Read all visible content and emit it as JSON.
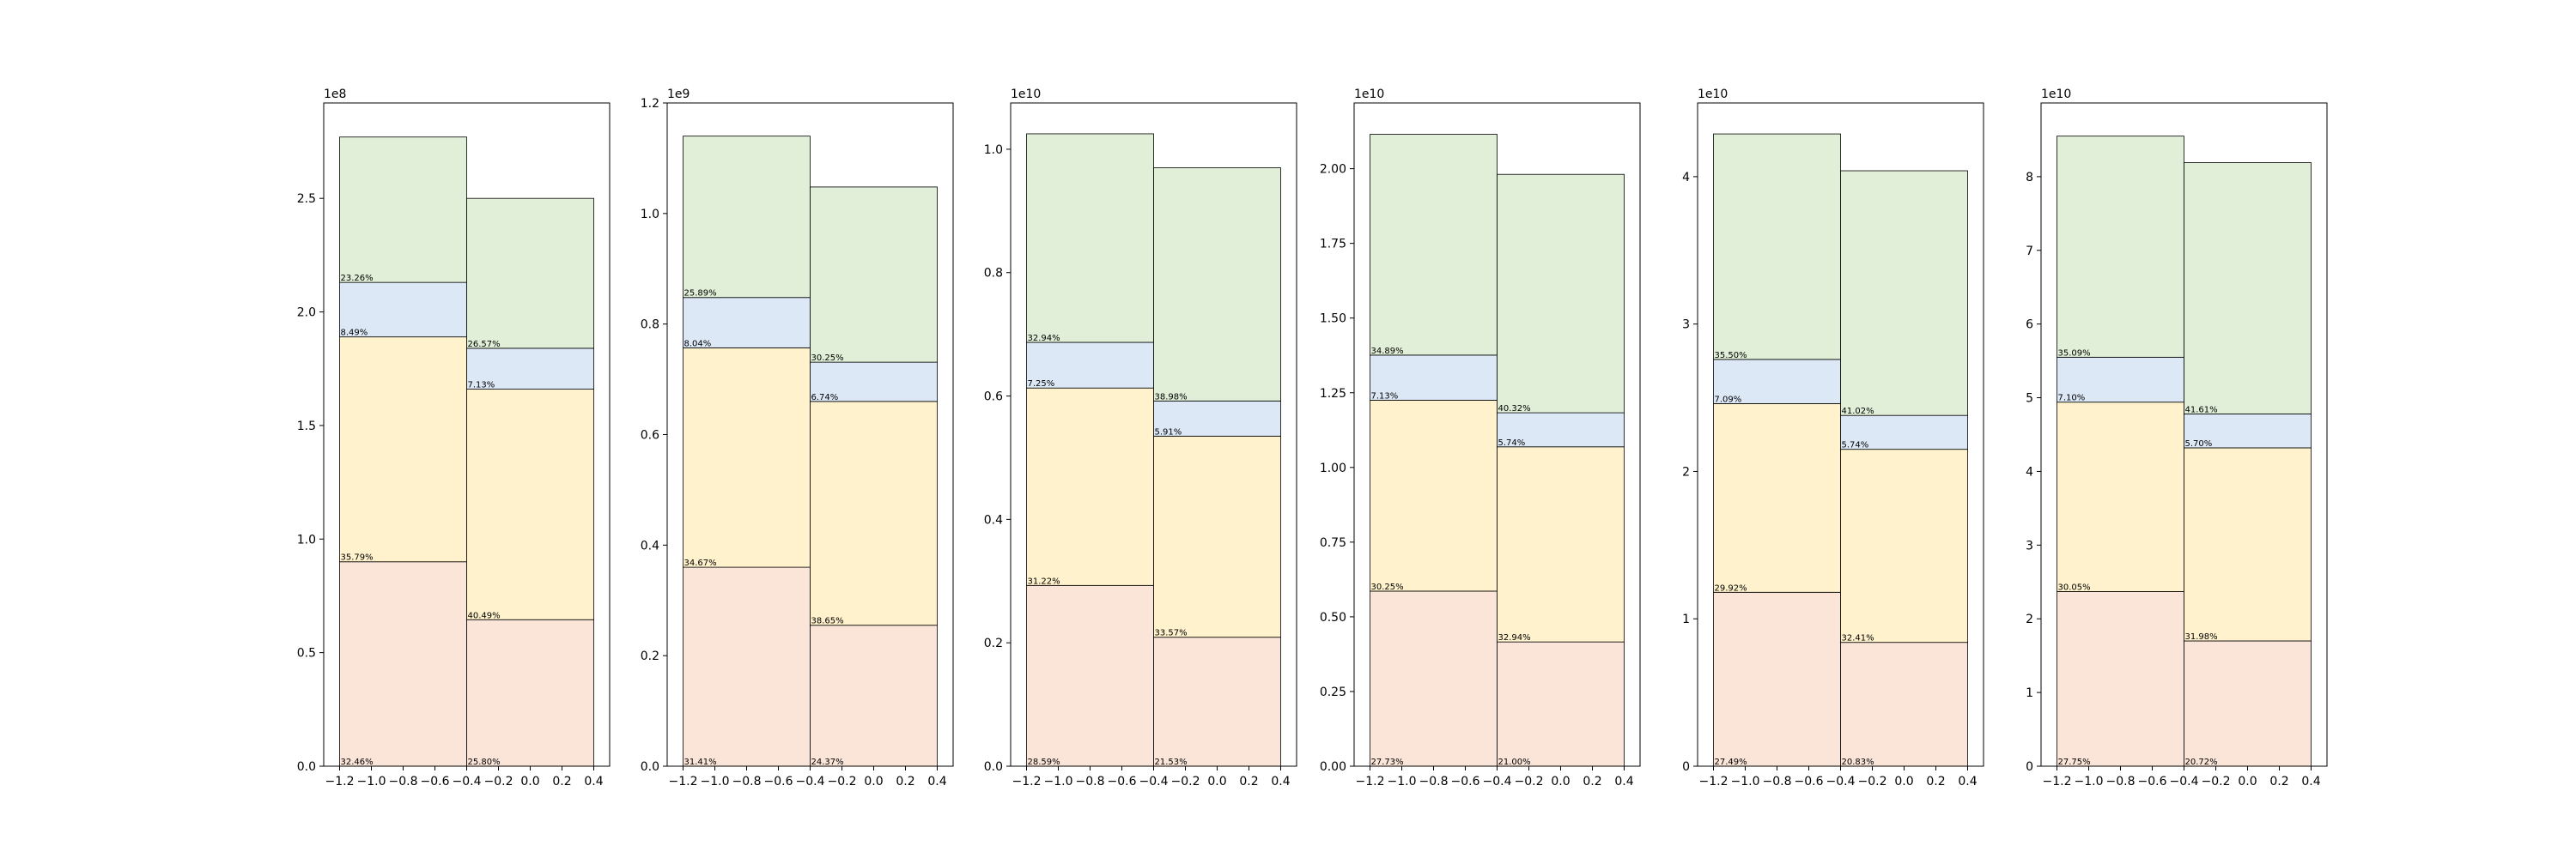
{
  "colors": {
    "segments": [
      "#fae5d8",
      "#fff2cc",
      "#dde8f7",
      "#e1efd8"
    ],
    "frame": "#000000",
    "bar_edge": "#000000"
  },
  "chart_data": [
    {
      "type": "bar",
      "stacked": true,
      "exponent_label": "1e8",
      "scale": 100000000,
      "xlim": [
        -1.3,
        0.5
      ],
      "ylim": [
        0,
        2.92
      ],
      "xticks": [
        -1.2,
        -1.0,
        -0.8,
        -0.6,
        -0.4,
        -0.2,
        0.0,
        0.2,
        0.4
      ],
      "xtick_labels": [
        "−1.2",
        "−1.0",
        "−0.8",
        "−0.6",
        "−0.4",
        "−0.2",
        "0.0",
        "0.2",
        "0.4"
      ],
      "yticks": [
        0,
        0.5,
        1.0,
        1.5,
        2.0,
        2.5
      ],
      "ytick_labels": [
        "0.0",
        "0.5",
        "1.0",
        "1.5",
        "2.0",
        "2.5"
      ],
      "bars": [
        {
          "left": -1.2,
          "width": 0.8,
          "segments": [
            0.9,
            1.89,
            2.13,
            2.77
          ],
          "labels": [
            "32.46%",
            "35.79%",
            "8.49%",
            "23.26%"
          ]
        },
        {
          "left": -0.4,
          "width": 0.8,
          "segments": [
            0.645,
            1.66,
            1.84,
            2.5
          ],
          "labels": [
            "25.80%",
            "40.49%",
            "7.13%",
            "26.57%"
          ]
        }
      ]
    },
    {
      "type": "bar",
      "stacked": true,
      "exponent_label": "1e9",
      "scale": 1000000000,
      "xlim": [
        -1.3,
        0.5
      ],
      "ylim": [
        0,
        1.2
      ],
      "xticks": [
        -1.2,
        -1.0,
        -0.8,
        -0.6,
        -0.4,
        -0.2,
        0.0,
        0.2,
        0.4
      ],
      "xtick_labels": [
        "−1.2",
        "−1.0",
        "−0.8",
        "−0.6",
        "−0.4",
        "−0.2",
        "0.0",
        "0.2",
        "0.4"
      ],
      "yticks": [
        0,
        0.2,
        0.4,
        0.6,
        0.8,
        1.0,
        1.2
      ],
      "ytick_labels": [
        "0.0",
        "0.2",
        "0.4",
        "0.6",
        "0.8",
        "1.0",
        "1.2"
      ],
      "bars": [
        {
          "left": -1.2,
          "width": 0.8,
          "segments": [
            0.36,
            0.757,
            0.848,
            1.14
          ],
          "labels": [
            "31.41%",
            "34.67%",
            "8.04%",
            "25.89%"
          ]
        },
        {
          "left": -0.4,
          "width": 0.8,
          "segments": [
            0.255,
            0.66,
            0.731,
            1.048
          ],
          "labels": [
            "24.37%",
            "38.65%",
            "6.74%",
            "30.25%"
          ]
        }
      ]
    },
    {
      "type": "bar",
      "stacked": true,
      "exponent_label": "1e10",
      "scale": 10000000000,
      "xlim": [
        -1.3,
        0.5
      ],
      "ylim": [
        0,
        1.075
      ],
      "xticks": [
        -1.2,
        -1.0,
        -0.8,
        -0.6,
        -0.4,
        -0.2,
        0.0,
        0.2,
        0.4
      ],
      "xtick_labels": [
        "−1.2",
        "−1.0",
        "−0.8",
        "−0.6",
        "−0.4",
        "−0.2",
        "0.0",
        "0.2",
        "0.4"
      ],
      "yticks": [
        0,
        0.2,
        0.4,
        0.6,
        0.8,
        1.0
      ],
      "ytick_labels": [
        "0.0",
        "0.2",
        "0.4",
        "0.6",
        "0.8",
        "1.0"
      ],
      "bars": [
        {
          "left": -1.2,
          "width": 0.8,
          "segments": [
            0.293,
            0.613,
            0.687,
            1.025
          ],
          "labels": [
            "28.59%",
            "31.22%",
            "7.25%",
            "32.94%"
          ]
        },
        {
          "left": -0.4,
          "width": 0.8,
          "segments": [
            0.209,
            0.535,
            0.592,
            0.97
          ],
          "labels": [
            "21.53%",
            "33.57%",
            "5.91%",
            "38.98%"
          ]
        }
      ]
    },
    {
      "type": "bar",
      "stacked": true,
      "exponent_label": "1e10",
      "scale": 10000000000,
      "xlim": [
        -1.3,
        0.5
      ],
      "ylim": [
        0,
        2.22
      ],
      "xticks": [
        -1.2,
        -1.0,
        -0.8,
        -0.6,
        -0.4,
        -0.2,
        0.0,
        0.2,
        0.4
      ],
      "xtick_labels": [
        "−1.2",
        "−1.0",
        "−0.8",
        "−0.6",
        "−0.4",
        "−0.2",
        "0.0",
        "0.2",
        "0.4"
      ],
      "yticks": [
        0,
        0.25,
        0.5,
        0.75,
        1.0,
        1.25,
        1.5,
        1.75,
        2.0
      ],
      "ytick_labels": [
        "0.00",
        "0.25",
        "0.50",
        "0.75",
        "1.00",
        "1.25",
        "1.50",
        "1.75",
        "2.00"
      ],
      "bars": [
        {
          "left": -1.2,
          "width": 0.8,
          "segments": [
            0.586,
            1.225,
            1.376,
            2.115
          ],
          "labels": [
            "27.73%",
            "30.25%",
            "7.13%",
            "34.89%"
          ]
        },
        {
          "left": -0.4,
          "width": 0.8,
          "segments": [
            0.416,
            1.069,
            1.183,
            1.981
          ],
          "labels": [
            "21.00%",
            "32.94%",
            "5.74%",
            "40.32%"
          ]
        }
      ]
    },
    {
      "type": "bar",
      "stacked": true,
      "exponent_label": "1e10",
      "scale": 10000000000,
      "xlim": [
        -1.3,
        0.5
      ],
      "ylim": [
        0,
        4.5
      ],
      "xticks": [
        -1.2,
        -1.0,
        -0.8,
        -0.6,
        -0.4,
        -0.2,
        0.0,
        0.2,
        0.4
      ],
      "xtick_labels": [
        "−1.2",
        "−1.0",
        "−0.8",
        "−0.6",
        "−0.4",
        "−0.2",
        "0.0",
        "0.2",
        "0.4"
      ],
      "yticks": [
        0,
        1,
        2,
        3,
        4
      ],
      "ytick_labels": [
        "0",
        "1",
        "2",
        "3",
        "4"
      ],
      "bars": [
        {
          "left": -1.2,
          "width": 0.8,
          "segments": [
            1.18,
            2.46,
            2.76,
            4.29
          ],
          "labels": [
            "27.49%",
            "29.92%",
            "7.09%",
            "35.50%"
          ]
        },
        {
          "left": -0.4,
          "width": 0.8,
          "segments": [
            0.84,
            2.15,
            2.38,
            4.04
          ],
          "labels": [
            "20.83%",
            "32.41%",
            "5.74%",
            "41.02%"
          ]
        }
      ]
    },
    {
      "type": "bar",
      "stacked": true,
      "exponent_label": "1e10",
      "scale": 10000000000,
      "xlim": [
        -1.3,
        0.5
      ],
      "ylim": [
        0,
        9.0
      ],
      "xticks": [
        -1.2,
        -1.0,
        -0.8,
        -0.6,
        -0.4,
        -0.2,
        0.0,
        0.2,
        0.4
      ],
      "xtick_labels": [
        "−1.2",
        "−1.0",
        "−0.8",
        "−0.6",
        "−0.4",
        "−0.2",
        "0.0",
        "0.2",
        "0.4"
      ],
      "yticks": [
        0,
        1,
        2,
        3,
        4,
        5,
        6,
        7,
        8
      ],
      "ytick_labels": [
        "0",
        "1",
        "2",
        "3",
        "4",
        "5",
        "6",
        "7",
        "8"
      ],
      "bars": [
        {
          "left": -1.2,
          "width": 0.8,
          "segments": [
            2.37,
            4.94,
            5.55,
            8.55
          ],
          "labels": [
            "27.75%",
            "30.05%",
            "7.10%",
            "35.09%"
          ]
        },
        {
          "left": -0.4,
          "width": 0.8,
          "segments": [
            1.7,
            4.32,
            4.78,
            8.19
          ],
          "labels": [
            "20.72%",
            "31.98%",
            "5.70%",
            "41.61%"
          ]
        }
      ]
    }
  ]
}
